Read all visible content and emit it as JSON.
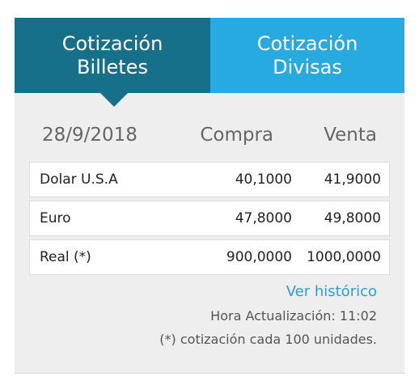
{
  "tabs": [
    {
      "lines": [
        "Cotización",
        "Billetes"
      ]
    },
    {
      "lines": [
        "Cotización",
        "Divisas"
      ]
    }
  ],
  "table": {
    "date": "28/9/2018",
    "headers": [
      "Compra",
      "Venta"
    ],
    "rows": [
      [
        "Dolar U.S.A",
        "40,1000",
        "41,9000"
      ],
      [
        "Euro",
        "47,8000",
        "49,8000"
      ],
      [
        "Real (*)",
        "900,0000",
        "1000,0000"
      ]
    ]
  },
  "footer": {
    "link": "Ver histórico",
    "update": "Hora Actualización: 11:02",
    "note": "(*) cotización cada 100 unidades."
  }
}
